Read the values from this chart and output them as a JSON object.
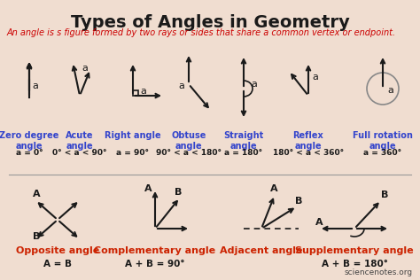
{
  "title": "Types of Angles in Geometry",
  "subtitle": "An angle is s figure formed by two rays or sides that share a common vertex or endpoint.",
  "bg_color": "#f0ddd0",
  "title_color": "#1a1a1a",
  "subtitle_color": "#cc0000",
  "angle_color": "#1a1a1a",
  "label_color": "#3344cc",
  "label_color2": "#cc2200",
  "formula_color": "#1a1a1a",
  "row1_labels": [
    "Zero degree\nangle",
    "Acute\nangle",
    "Right angle",
    "Obtuse\nangle",
    "Straight\nangle",
    "Reflex\nangle",
    "Full rotation\nangle"
  ],
  "row1_formulas": [
    "a = 0°",
    "0° < a < 90°",
    "a = 90°",
    "90° < a < 180°",
    "a = 180°",
    "180° < a < 360°",
    "a = 360°"
  ],
  "row2_labels": [
    "Opposite angle",
    "Complementary angle",
    "Adjacent angle",
    "Supplementary angle"
  ],
  "row2_formulas": [
    "A = B",
    "A + B = 90°",
    "",
    "A + B = 180°"
  ],
  "website": "sciencenotes.org"
}
